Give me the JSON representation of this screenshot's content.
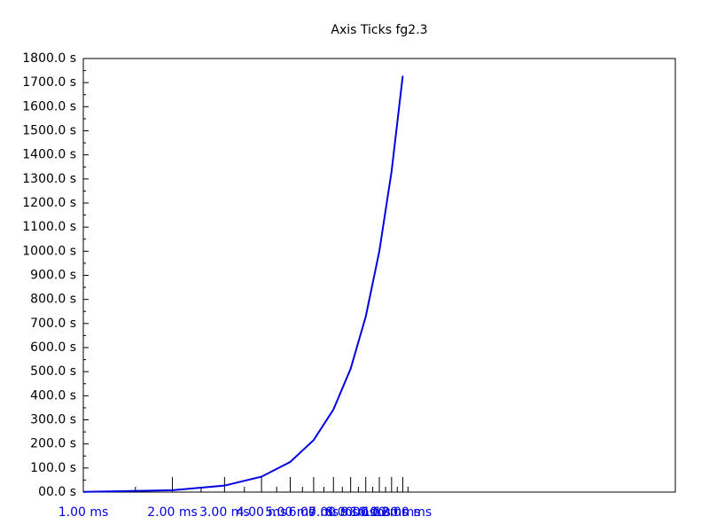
{
  "chart_data": {
    "type": "line",
    "title": "Axis Ticks fg2.3",
    "x": [
      1,
      2,
      3,
      4,
      5,
      6,
      7,
      8,
      9,
      10,
      11,
      12
    ],
    "series": [
      {
        "color": "#0000e0",
        "values": [
          1,
          8,
          27,
          64,
          125,
          216,
          343,
          512,
          729,
          1000,
          1331,
          1728
        ]
      }
    ],
    "xscale": "log",
    "xlim": [
      1,
      100
    ],
    "xticks": [
      {
        "value": 1,
        "label": "1.00 ms"
      },
      {
        "value": 2,
        "label": "2.00 ms"
      },
      {
        "value": 3,
        "label": "3.00 ms"
      },
      {
        "value": 4,
        "label": "4.00 ms"
      },
      {
        "value": 5,
        "label": "5.00 ms"
      },
      {
        "value": 6,
        "label": "6.00 ms"
      },
      {
        "value": 7,
        "label": "7.00 ms"
      },
      {
        "value": 8,
        "label": "8.00 ms"
      },
      {
        "value": 9,
        "label": "9.00 ms"
      },
      {
        "value": 10,
        "label": "10.00 ms"
      },
      {
        "value": 11,
        "label": "11.00 ms"
      },
      {
        "value": 12,
        "label": "12.00 ms"
      }
    ],
    "xminorticks": [
      1.5,
      2.5,
      3.5,
      4.5,
      5.5,
      6.5,
      7.5,
      8.5,
      9.5,
      10.5,
      11.5,
      12.5
    ],
    "xtick_color": "#0000e0",
    "ylim": [
      0,
      1800
    ],
    "yticks": [
      {
        "value": 0,
        "label": "00.0 s"
      },
      {
        "value": 100,
        "label": "100.0 s"
      },
      {
        "value": 200,
        "label": "200.0 s"
      },
      {
        "value": 300,
        "label": "300.0 s"
      },
      {
        "value": 400,
        "label": "400.0 s"
      },
      {
        "value": 500,
        "label": "500.0 s"
      },
      {
        "value": 600,
        "label": "600.0 s"
      },
      {
        "value": 700,
        "label": "700.0 s"
      },
      {
        "value": 800,
        "label": "800.0 s"
      },
      {
        "value": 900,
        "label": "900.0 s"
      },
      {
        "value": 1000,
        "label": "1000.0 s"
      },
      {
        "value": 1100,
        "label": "1100.0 s"
      },
      {
        "value": 1200,
        "label": "1200.0 s"
      },
      {
        "value": 1300,
        "label": "1300.0 s"
      },
      {
        "value": 1400,
        "label": "1400.0 s"
      },
      {
        "value": 1500,
        "label": "1500.0 s"
      },
      {
        "value": 1600,
        "label": "1600.0 s"
      },
      {
        "value": 1700,
        "label": "1700.0 s"
      },
      {
        "value": 1800,
        "label": "1800.0 s"
      }
    ],
    "yminorticks": [
      50,
      150,
      250,
      350,
      450,
      550,
      650,
      750,
      850,
      950,
      1050,
      1150,
      1250,
      1350,
      1450,
      1550,
      1650,
      1750
    ]
  }
}
